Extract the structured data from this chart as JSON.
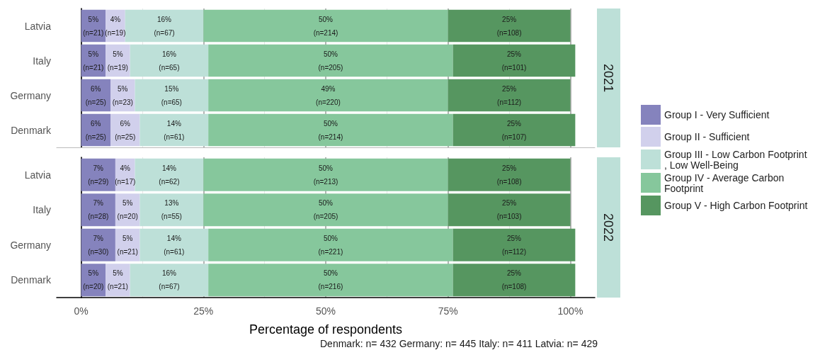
{
  "chart_data": [
    {
      "type": "bar",
      "title": "2021",
      "orientation": "horizontal",
      "stacked": true,
      "grid": "x",
      "legend": "right",
      "tick_labels": "y",
      "categories": [
        "Latvia",
        "Italy",
        "Germany",
        "Denmark"
      ],
      "xlim": [
        -5,
        105
      ],
      "xticks": [
        {
          "value": 0,
          "label": "0%"
        },
        {
          "value": 12.5,
          "label": null
        },
        {
          "value": 25,
          "label": "25%"
        },
        {
          "value": 37.5,
          "label": null
        },
        {
          "value": 50,
          "label": "50%"
        },
        {
          "value": 62.5,
          "label": null
        },
        {
          "value": 75,
          "label": "75%"
        },
        {
          "value": 87.5,
          "label": null
        },
        {
          "value": 100,
          "label": "100%"
        }
      ],
      "series": [
        {
          "name": "Group I - Very Sufficient",
          "color": "#8583bd",
          "values": [
            5,
            5,
            6,
            6
          ],
          "value_labels": [
            "5%\n(n=21)",
            "5%\n(n=21)",
            "6%\n(n=25)",
            "6%\n(n=25)"
          ]
        },
        {
          "name": "Group II - Sufficient",
          "color": "#d1d0ec",
          "values": [
            4,
            5,
            5,
            6
          ],
          "value_labels": [
            "4%\n(n=19)",
            "5%\n(n=19)",
            "5%\n(n=23)",
            "6%\n(n=25)"
          ]
        },
        {
          "name": "Group III - Low Carbon Footprint, Low Well-Being",
          "color": "#bde0d8",
          "values": [
            16,
            16,
            15,
            14
          ],
          "value_labels": [
            "16%\n(n=67)",
            "16%\n(n=65)",
            "15%\n(n=65)",
            "14%\n(n=61)"
          ]
        },
        {
          "name": "Group IV - Average Carbon Footprint",
          "color": "#86c79c",
          "values": [
            50,
            50,
            49,
            50
          ],
          "value_labels": [
            "50%\n(n=214)",
            "50%\n(n=205)",
            "49%\n(n=220)",
            "50%\n(n=214)"
          ]
        },
        {
          "name": "Group V - High Carbon Footprint",
          "color": "#569660",
          "values": [
            25,
            25,
            25,
            25
          ],
          "value_labels": [
            "25%\n(n=108)",
            "25%\n(n=101)",
            "25%\n(n=112)",
            "25%\n(n=107)"
          ]
        }
      ]
    },
    {
      "type": "bar",
      "title": "2022",
      "orientation": "horizontal",
      "stacked": true,
      "grid": "x",
      "xlabel": "Percentage of respondents",
      "annotations": [
        "Denmark: n= 432 Germany: n= 445 Italy: n= 411 Latvia: n= 429"
      ],
      "categories": [
        "Latvia",
        "Italy",
        "Germany",
        "Denmark"
      ],
      "xlim": [
        -5,
        105
      ],
      "xticks": [
        {
          "value": 0,
          "label": "0%"
        },
        {
          "value": 12.5,
          "label": null
        },
        {
          "value": 25,
          "label": "25%"
        },
        {
          "value": 37.5,
          "label": null
        },
        {
          "value": 50,
          "label": "50%"
        },
        {
          "value": 62.5,
          "label": null
        },
        {
          "value": 75,
          "label": "75%"
        },
        {
          "value": 87.5,
          "label": null
        },
        {
          "value": 100,
          "label": "100%"
        }
      ],
      "series": [
        {
          "color": "#8583bd",
          "values": [
            7,
            7,
            7,
            5
          ],
          "value_labels": [
            "7%\n(n=29)",
            "7%\n(n=28)",
            "7%\n(n=30)",
            "5%\n(n=20)"
          ]
        },
        {
          "color": "#d1d0ec",
          "values": [
            4,
            5,
            5,
            5
          ],
          "value_labels": [
            "4%\n(n=17)",
            "5%\n(n=20)",
            "5%\n(n=21)",
            "5%\n(n=21)"
          ]
        },
        {
          "color": "#bde0d8",
          "values": [
            14,
            13,
            14,
            16
          ],
          "value_labels": [
            "14%\n(n=62)",
            "13%\n(n=55)",
            "14%\n(n=61)",
            "16%\n(n=67)"
          ]
        },
        {
          "color": "#86c79c",
          "values": [
            50,
            50,
            50,
            50
          ],
          "value_labels": [
            "50%\n(n=213)",
            "50%\n(n=205)",
            "50%\n(n=221)",
            "50%\n(n=216)"
          ]
        },
        {
          "color": "#569660",
          "values": [
            25,
            25,
            25,
            25
          ],
          "value_labels": [
            "25%\n(n=108)",
            "25%\n(n=103)",
            "25%\n(n=112)",
            "25%\n(n=108)"
          ]
        }
      ]
    }
  ]
}
